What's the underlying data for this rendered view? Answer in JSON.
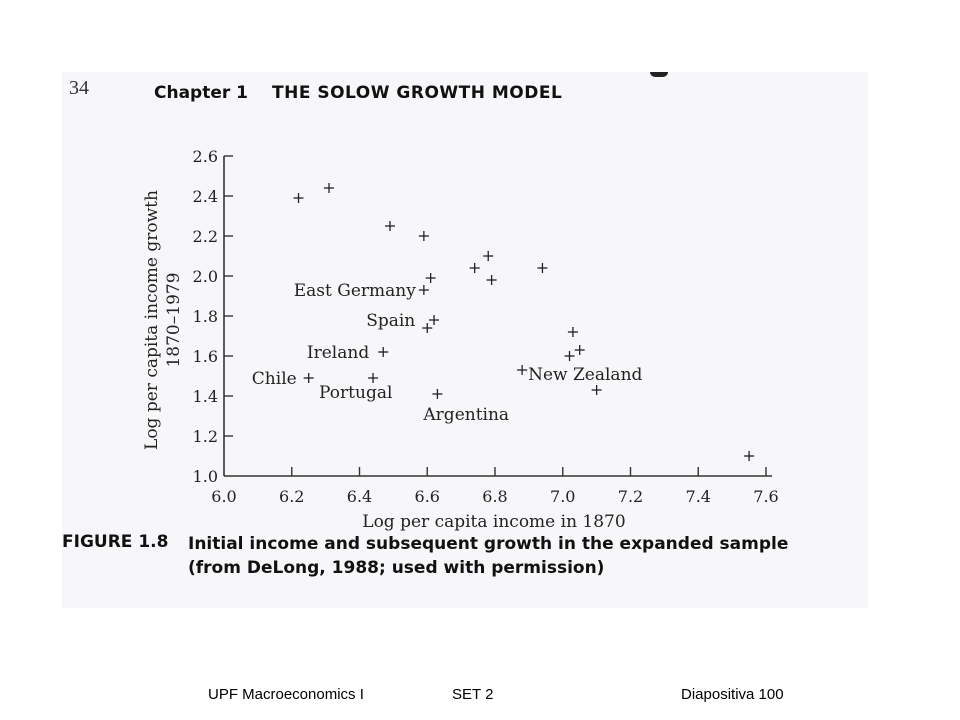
{
  "header": {
    "page_number": "34",
    "chapter_label": "Chapter 1",
    "chapter_title": "THE SOLOW GROWTH MODEL"
  },
  "figure": {
    "label": "FIGURE 1.8",
    "caption_line1": "Initial income and subsequent growth in the expanded sample",
    "caption_line2": "(from DeLong, 1988; used with permission)"
  },
  "chart_data": {
    "type": "scatter",
    "xlabel": "Log per capita income in 1870",
    "ylabel_line1": "Log per capita income growth",
    "ylabel_line2": "1870–1979",
    "xlim": [
      6.0,
      7.6
    ],
    "ylim": [
      1.0,
      2.6
    ],
    "x_ticks": [
      "6.0",
      "6.2",
      "6.4",
      "6.6",
      "6.8",
      "7.0",
      "7.2",
      "7.4",
      "7.6"
    ],
    "y_ticks": [
      "1.0",
      "1.2",
      "1.4",
      "1.6",
      "1.8",
      "2.0",
      "2.2",
      "2.4",
      "2.6"
    ],
    "marker": "+",
    "grid": false,
    "points": [
      {
        "x": 6.22,
        "y": 2.39,
        "label": ""
      },
      {
        "x": 6.31,
        "y": 2.44,
        "label": ""
      },
      {
        "x": 6.49,
        "y": 2.25,
        "label": ""
      },
      {
        "x": 6.59,
        "y": 2.2,
        "label": ""
      },
      {
        "x": 6.59,
        "y": 1.93,
        "label": "East Germany"
      },
      {
        "x": 6.61,
        "y": 1.99,
        "label": ""
      },
      {
        "x": 6.6,
        "y": 1.74,
        "label": "Spain"
      },
      {
        "x": 6.62,
        "y": 1.78,
        "label": ""
      },
      {
        "x": 6.74,
        "y": 2.04,
        "label": ""
      },
      {
        "x": 6.78,
        "y": 2.1,
        "label": ""
      },
      {
        "x": 6.79,
        "y": 1.98,
        "label": ""
      },
      {
        "x": 6.94,
        "y": 2.04,
        "label": ""
      },
      {
        "x": 6.47,
        "y": 1.62,
        "label": "Ireland"
      },
      {
        "x": 6.25,
        "y": 1.49,
        "label": "Chile"
      },
      {
        "x": 6.44,
        "y": 1.49,
        "label": "Portugal"
      },
      {
        "x": 6.63,
        "y": 1.41,
        "label": "Argentina"
      },
      {
        "x": 6.88,
        "y": 1.53,
        "label": "New Zealand"
      },
      {
        "x": 7.03,
        "y": 1.72,
        "label": ""
      },
      {
        "x": 7.02,
        "y": 1.6,
        "label": ""
      },
      {
        "x": 7.05,
        "y": 1.63,
        "label": ""
      },
      {
        "x": 7.1,
        "y": 1.43,
        "label": ""
      },
      {
        "x": 7.55,
        "y": 1.1,
        "label": ""
      }
    ]
  },
  "footer": {
    "course": "UPF Macroeconomics I",
    "set": "SET 2",
    "slide": "Diapositiva 100"
  }
}
